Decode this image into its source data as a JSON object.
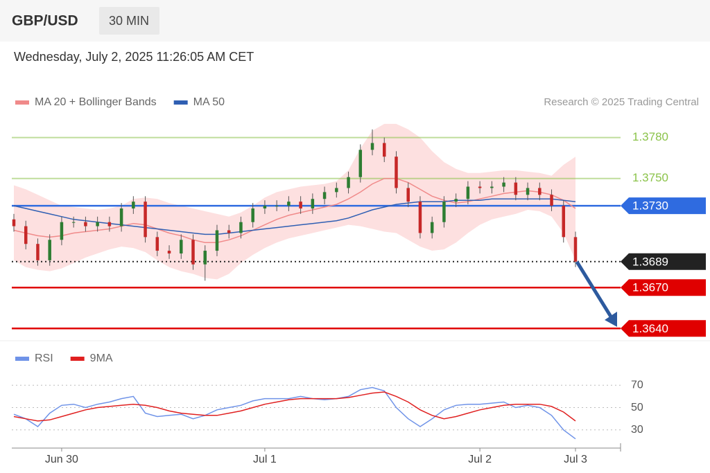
{
  "header": {
    "symbol": "GBP/USD",
    "interval": "30 MIN",
    "timestamp": "Wednesday, July 2, 2025 11:26:05 AM CET"
  },
  "chart_data": [
    {
      "type": "candlestick",
      "note": "Research © 2025 Trading Central",
      "categories": [
        null,
        null,
        null,
        null,
        "Jun 30",
        null,
        null,
        null,
        null,
        null,
        null,
        null,
        null,
        null,
        null,
        null,
        null,
        null,
        null,
        null,
        null,
        "Jul 1",
        null,
        null,
        null,
        null,
        null,
        null,
        null,
        null,
        null,
        null,
        null,
        null,
        null,
        null,
        null,
        null,
        null,
        "Jul 2",
        null,
        null,
        null,
        null,
        null,
        null,
        null,
        "Jul 3"
      ],
      "open": [
        1.372,
        1.3715,
        1.3702,
        1.369,
        1.3705,
        1.3718,
        1.3718,
        1.3715,
        1.3718,
        1.3715,
        1.3728,
        1.3733,
        1.3707,
        1.3697,
        1.3695,
        1.3705,
        1.3687,
        1.3697,
        1.3712,
        1.371,
        1.3718,
        1.3728,
        1.373,
        1.373,
        1.3733,
        1.3728,
        1.3735,
        1.374,
        1.3743,
        1.3751,
        1.3771,
        1.3776,
        1.3766,
        1.3743,
        1.3733,
        1.371,
        1.3718,
        1.3733,
        1.3735,
        1.3744,
        1.3743,
        1.3744,
        1.3747,
        1.3738,
        1.3743,
        1.3738,
        1.373,
        1.3707
      ],
      "high": [
        1.3724,
        1.3719,
        1.3706,
        1.3709,
        1.3722,
        1.3722,
        1.3722,
        1.3722,
        1.3722,
        1.3732,
        1.3737,
        1.3737,
        1.3711,
        1.3701,
        1.3709,
        1.3709,
        1.3701,
        1.3716,
        1.3716,
        1.3722,
        1.3732,
        1.3734,
        1.3734,
        1.3737,
        1.3737,
        1.3739,
        1.3744,
        1.3747,
        1.3755,
        1.3775,
        1.3786,
        1.378,
        1.377,
        1.3747,
        1.3737,
        1.3722,
        1.3737,
        1.3739,
        1.3748,
        1.3748,
        1.3748,
        1.3751,
        1.3751,
        1.3747,
        1.3747,
        1.3742,
        1.3734,
        1.3711
      ],
      "low": [
        1.3711,
        1.3698,
        1.3686,
        1.3686,
        1.3701,
        1.3714,
        1.3711,
        1.3711,
        1.3711,
        1.3711,
        1.3724,
        1.3703,
        1.3693,
        1.3691,
        1.3691,
        1.3683,
        1.3675,
        1.3693,
        1.3706,
        1.3706,
        1.3714,
        1.3724,
        1.3726,
        1.3726,
        1.3724,
        1.3724,
        1.3731,
        1.3736,
        1.3739,
        1.3747,
        1.3767,
        1.3762,
        1.3739,
        1.3729,
        1.3706,
        1.3706,
        1.3714,
        1.3729,
        1.3731,
        1.3739,
        1.3739,
        1.374,
        1.3734,
        1.3734,
        1.3734,
        1.3726,
        1.3703,
        1.3685
      ],
      "close": [
        1.3715,
        1.3702,
        1.369,
        1.3705,
        1.3718,
        1.3718,
        1.3715,
        1.3718,
        1.3715,
        1.3728,
        1.3733,
        1.3707,
        1.3697,
        1.3695,
        1.3705,
        1.3687,
        1.3697,
        1.3712,
        1.371,
        1.3718,
        1.3728,
        1.373,
        1.373,
        1.3733,
        1.3728,
        1.3735,
        1.374,
        1.3743,
        1.3751,
        1.3771,
        1.3776,
        1.3766,
        1.3743,
        1.3733,
        1.371,
        1.3718,
        1.3733,
        1.3735,
        1.3744,
        1.3743,
        1.3744,
        1.3747,
        1.3738,
        1.3743,
        1.3738,
        1.373,
        1.3707,
        1.3689
      ],
      "up_color": "#2e7d32",
      "down_color": "#c62828",
      "series": [
        {
          "name": "MA 20 + Bollinger Bands",
          "color": "#f08a8a",
          "band_color": "#fde0e0",
          "values": [
            1.3712,
            1.371,
            1.3708,
            1.3707,
            1.3708,
            1.371,
            1.3711,
            1.3712,
            1.3713,
            1.3715,
            1.3717,
            1.3716,
            1.3713,
            1.371,
            1.3708,
            1.3705,
            1.3703,
            1.3703,
            1.3705,
            1.3708,
            1.3712,
            1.3716,
            1.372,
            1.3723,
            1.3725,
            1.3727,
            1.3729,
            1.3731,
            1.3735,
            1.374,
            1.3746,
            1.375,
            1.375,
            1.3747,
            1.3742,
            1.3737,
            1.3734,
            1.3732,
            1.3733,
            1.3735,
            1.3737,
            1.3739,
            1.374,
            1.3741,
            1.374,
            1.3738,
            1.3734,
            1.3728
          ],
          "upper": [
            1.3745,
            1.3742,
            1.3738,
            1.3734,
            1.373,
            1.3729,
            1.3728,
            1.3727,
            1.3728,
            1.373,
            1.3735,
            1.3736,
            1.3735,
            1.3732,
            1.373,
            1.3728,
            1.3726,
            1.3724,
            1.3722,
            1.3725,
            1.373,
            1.3736,
            1.374,
            1.3742,
            1.3744,
            1.3745,
            1.3746,
            1.3748,
            1.3756,
            1.3772,
            1.3785,
            1.379,
            1.379,
            1.3786,
            1.378,
            1.377,
            1.3762,
            1.3757,
            1.3754,
            1.3754,
            1.3755,
            1.3756,
            1.3756,
            1.3755,
            1.3754,
            1.3752,
            1.376,
            1.3766
          ],
          "lower": [
            1.369,
            1.3685,
            1.3683,
            1.3682,
            1.3684,
            1.3688,
            1.3692,
            1.3695,
            1.3698,
            1.37,
            1.3699,
            1.3696,
            1.369,
            1.3685,
            1.3682,
            1.368,
            1.3677,
            1.3676,
            1.368,
            1.3688,
            1.3694,
            1.3699,
            1.3703,
            1.3706,
            1.3708,
            1.371,
            1.3712,
            1.3714,
            1.3716,
            1.3715,
            1.3713,
            1.3711,
            1.371,
            1.3705,
            1.37,
            1.3697,
            1.3698,
            1.3703,
            1.371,
            1.3716,
            1.372,
            1.3722,
            1.3724,
            1.3727,
            1.3726,
            1.3722,
            1.371,
            1.369
          ]
        },
        {
          "name": "MA 50",
          "color": "#2f5fb3",
          "values": [
            1.373,
            1.3728,
            1.3726,
            1.3724,
            1.3722,
            1.372,
            1.3719,
            1.3718,
            1.3717,
            1.3716,
            1.3715,
            1.3714,
            1.3713,
            1.3712,
            1.3711,
            1.371,
            1.3709,
            1.3709,
            1.371,
            1.3711,
            1.3712,
            1.3713,
            1.3714,
            1.3715,
            1.3716,
            1.3717,
            1.3718,
            1.3719,
            1.3721,
            1.3724,
            1.3727,
            1.3729,
            1.3731,
            1.3732,
            1.3733,
            1.3733,
            1.3733,
            1.3734,
            1.3734,
            1.3734,
            1.3735,
            1.3735,
            1.3735,
            1.3735,
            1.3735,
            1.3735,
            1.3734,
            1.3733
          ]
        }
      ],
      "levels": [
        {
          "value": 1.378,
          "label": "1.3780",
          "color": "#8bc34a",
          "style": "text"
        },
        {
          "value": 1.375,
          "label": "1.3750",
          "color": "#8bc34a",
          "style": "text"
        },
        {
          "value": 1.373,
          "label": "1.3730",
          "color": "#2f6be0",
          "style": "tag"
        },
        {
          "value": 1.3689,
          "label": "1.3689",
          "color": "#222222",
          "style": "tag"
        },
        {
          "value": 1.367,
          "label": "1.3670",
          "color": "#e00000",
          "style": "tag"
        },
        {
          "value": 1.364,
          "label": "1.3640",
          "color": "#e00000",
          "style": "tag"
        }
      ],
      "ylim": [
        1.3631,
        1.3792
      ]
    },
    {
      "type": "line",
      "series": [
        {
          "name": "RSI",
          "color": "#6f93e8",
          "values": [
            44,
            40,
            33,
            45,
            52,
            53,
            50,
            53,
            55,
            58,
            60,
            45,
            42,
            43,
            44,
            40,
            43,
            48,
            50,
            52,
            56,
            58,
            58,
            58,
            60,
            58,
            57,
            58,
            60,
            66,
            68,
            65,
            50,
            40,
            33,
            40,
            48,
            52,
            53,
            53,
            54,
            55,
            50,
            52,
            50,
            43,
            30,
            22
          ]
        },
        {
          "name": "9MA",
          "color": "#e02020",
          "values": [
            42,
            40,
            38,
            39,
            42,
            45,
            48,
            50,
            51,
            52,
            53,
            52,
            50,
            47,
            45,
            44,
            43,
            43,
            45,
            47,
            50,
            53,
            55,
            57,
            58,
            58,
            58,
            58,
            59,
            61,
            63,
            64,
            60,
            55,
            48,
            43,
            40,
            42,
            45,
            48,
            50,
            52,
            53,
            53,
            53,
            51,
            46,
            38
          ]
        }
      ],
      "ylim": [
        15,
        77
      ],
      "yticks": [
        70,
        50,
        30
      ],
      "grid": true
    }
  ]
}
